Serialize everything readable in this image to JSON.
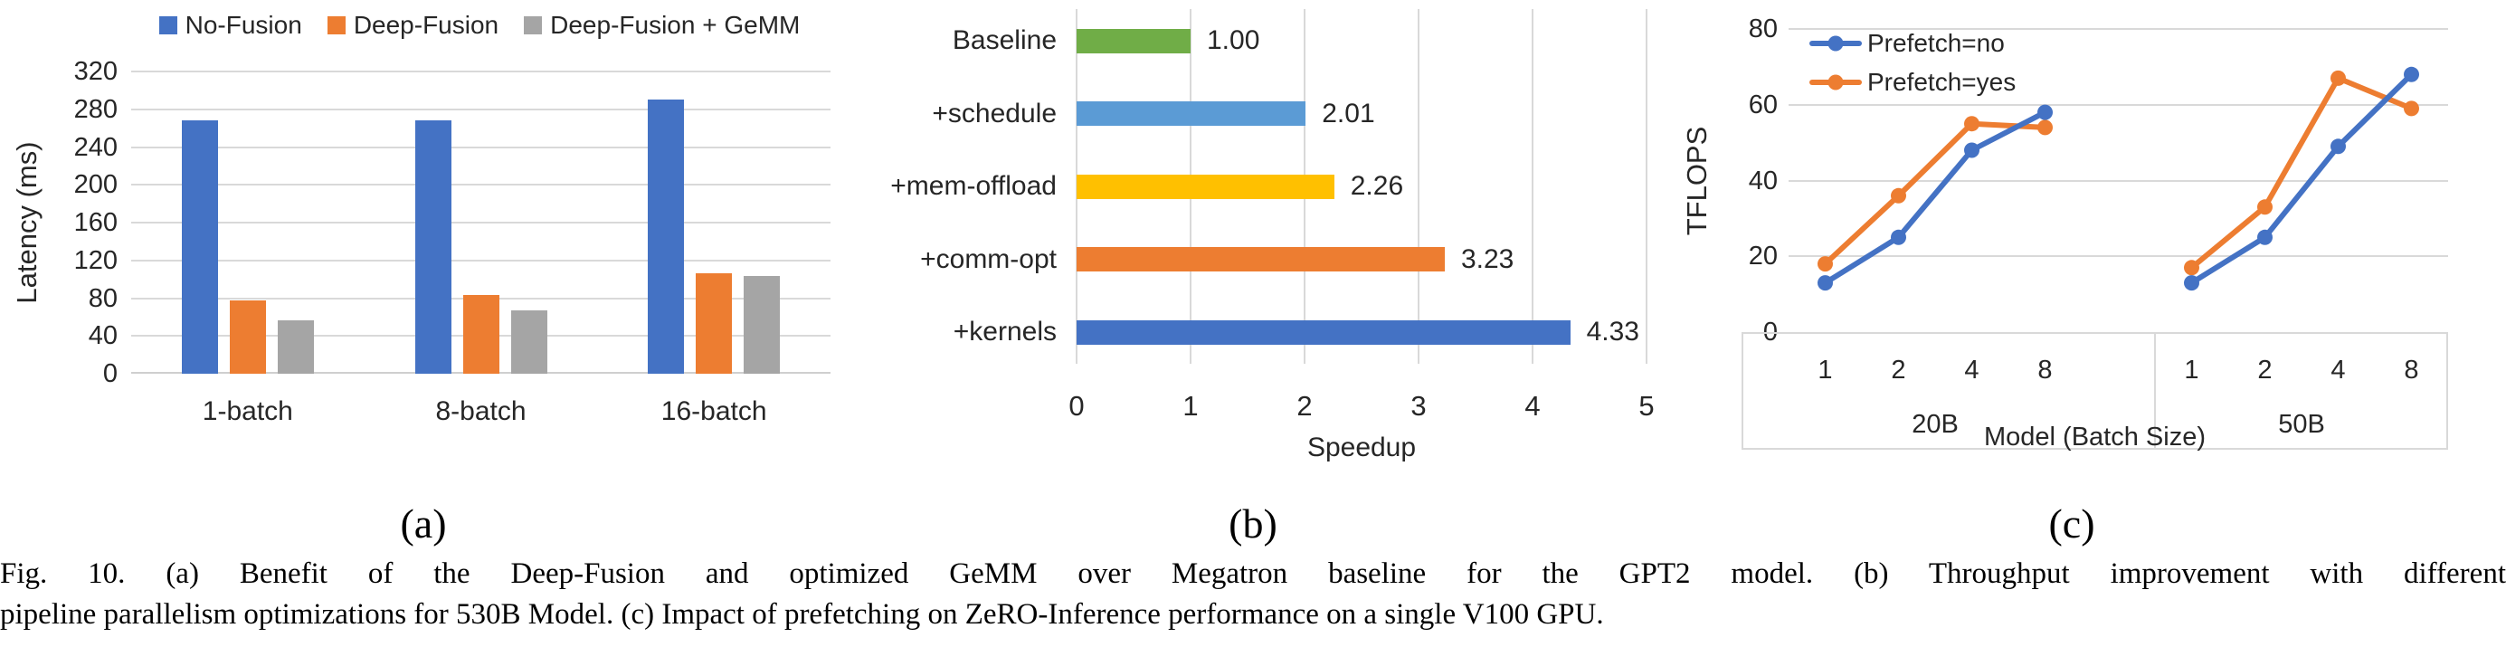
{
  "figure": {
    "caption_line1": "Fig. 10.  (a) Benefit of the Deep-Fusion and optimized GeMM over Megatron baseline for the GPT2 model. (b) Throughput improvement with different",
    "caption_line2": "pipeline parallelism optimizations for 530B Model. (c) Impact of prefetching on ZeRO-Inference performance on a single V100 GPU.",
    "panel_labels": {
      "a": "(a)",
      "b": "(b)",
      "c": "(c)"
    }
  },
  "colors": {
    "blue": "#4472C4",
    "orange": "#ED7D31",
    "gray": "#A5A5A5",
    "green": "#70AD47",
    "light_blue": "#5B9BD5",
    "yellow": "#FFC000",
    "gridline": "#D9D9D9"
  },
  "chart_data": [
    {
      "id": "latency-bars",
      "type": "bar",
      "title": "",
      "categories": [
        "1-batch",
        "8-batch",
        "16-batch"
      ],
      "series": [
        {
          "name": "No-Fusion",
          "color": "#4472C4",
          "values": [
            268,
            268,
            290
          ]
        },
        {
          "name": "Deep-Fusion",
          "color": "#ED7D31",
          "values": [
            78,
            83,
            106
          ]
        },
        {
          "name": "Deep-Fusion + GeMM",
          "color": "#A5A5A5",
          "values": [
            57,
            67,
            103
          ]
        }
      ],
      "xlabel": "",
      "ylabel": "Latency (ms)",
      "ylim": [
        0,
        320
      ],
      "yticks": [
        0,
        40,
        80,
        120,
        160,
        200,
        240,
        280,
        320
      ],
      "grid": true,
      "legend_position": "top"
    },
    {
      "id": "speedup-bars",
      "type": "bar",
      "orientation": "horizontal",
      "title": "",
      "categories": [
        "Baseline",
        "+schedule",
        "+mem-offload",
        "+comm-opt",
        "+kernels"
      ],
      "values": [
        1.0,
        2.01,
        2.26,
        3.23,
        4.33
      ],
      "value_labels": [
        "1.00",
        "2.01",
        "2.26",
        "3.23",
        "4.33"
      ],
      "bar_colors": [
        "#70AD47",
        "#5B9BD5",
        "#FFC000",
        "#ED7D31",
        "#4472C4"
      ],
      "xlabel": "Speedup",
      "ylabel": "",
      "xlim": [
        0,
        5
      ],
      "xticks": [
        0,
        1,
        2,
        3,
        4,
        5
      ],
      "grid": true
    },
    {
      "id": "tflops-lines",
      "type": "line",
      "title": "",
      "x_groups": [
        {
          "label": "20B",
          "categories": [
            "1",
            "2",
            "4",
            "8"
          ]
        },
        {
          "label": "50B",
          "categories": [
            "1",
            "2",
            "4",
            "8"
          ]
        }
      ],
      "xlabel": "Model  (Batch Size)",
      "ylabel": "TFLOPS",
      "ylim": [
        0,
        80
      ],
      "yticks": [
        0,
        20,
        40,
        60,
        80
      ],
      "series": [
        {
          "name": "Prefetch=no",
          "color": "#4472C4",
          "values": [
            13,
            25,
            48,
            58,
            13,
            25,
            49,
            68
          ]
        },
        {
          "name": "Prefetch=yes",
          "color": "#ED7D31",
          "values": [
            18,
            36,
            55,
            54,
            17,
            33,
            67,
            59
          ]
        }
      ],
      "grid": true,
      "legend_position": "top-left-inside"
    }
  ]
}
